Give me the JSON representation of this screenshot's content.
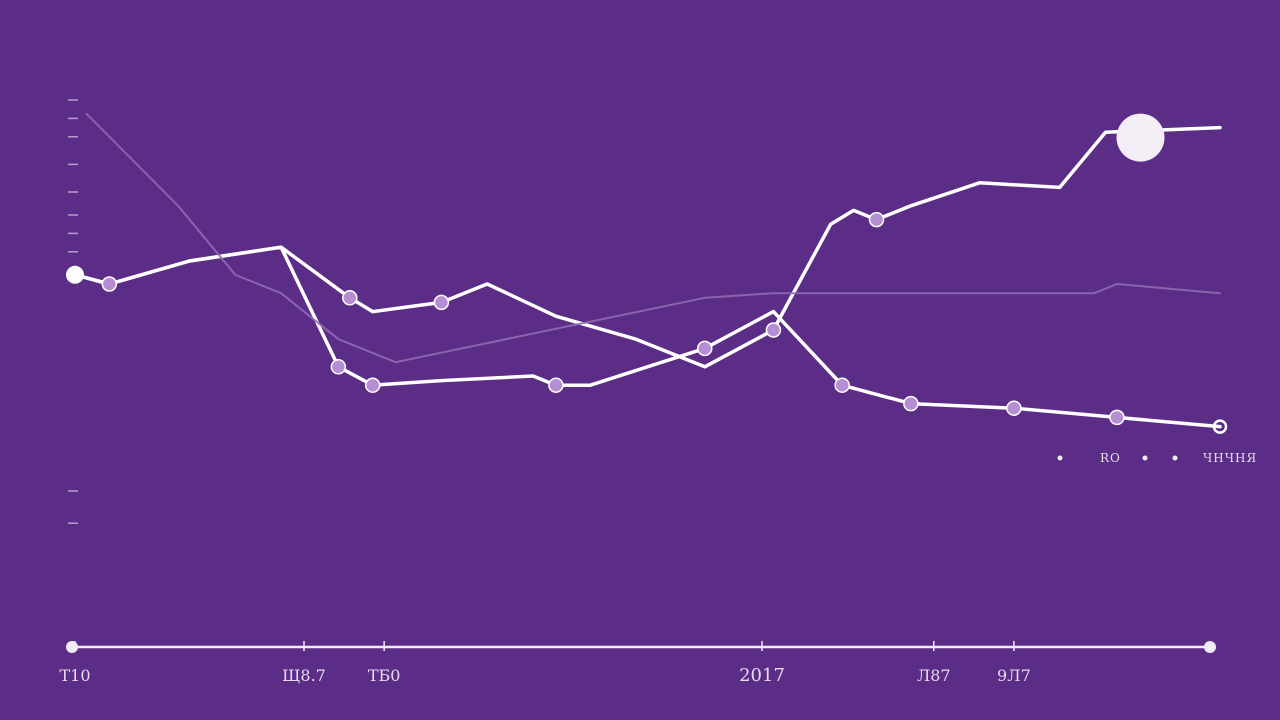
{
  "colors": {
    "background": "#5c2d86",
    "main_line": "#ffffff",
    "secondary_line": "#8f6bb3",
    "marker_fill": "#b58ed3",
    "axis": "#f2ecf7"
  },
  "chart_data": {
    "type": "line",
    "title": "",
    "xlabel": "",
    "ylabel": "",
    "x_ticks": [
      {
        "x": 0,
        "label": "Т10"
      },
      {
        "x": 20,
        "label": "Щ8.7"
      },
      {
        "x": 27,
        "label": "ТБ0"
      },
      {
        "x": 60,
        "label": "2017"
      },
      {
        "x": 75,
        "label": "Л87"
      },
      {
        "x": 82,
        "label": "9Л7"
      }
    ],
    "legend": {
      "placement": "right",
      "entries": [
        "RO",
        "ЧНЧНЯ"
      ]
    },
    "xlim": [
      0,
      100
    ],
    "ylim": [
      0,
      100
    ],
    "series": [
      {
        "x": [
          0,
          3,
          10,
          18,
          23,
          26,
          32,
          40,
          42,
          45,
          55,
          61,
          67,
          73,
          82,
          91,
          100
        ],
        "y": [
          62,
          60,
          65,
          68,
          42,
          38,
          39,
          40,
          38,
          38,
          46,
          54,
          38,
          34,
          33,
          31,
          29
        ]
      },
      {
        "x": [
          0,
          3,
          10,
          18,
          24,
          26,
          29,
          32,
          36,
          42,
          49,
          55,
          61,
          66,
          68,
          70,
          73,
          79,
          86,
          89,
          90,
          100
        ],
        "y": [
          62,
          60,
          65,
          68,
          57,
          54,
          55,
          56,
          60,
          53,
          48,
          42,
          50,
          73,
          76,
          74,
          77,
          82,
          81,
          90,
          93,
          94
        ]
      },
      {
        "x": [
          1,
          9,
          14,
          18,
          23,
          28,
          55,
          61,
          72,
          89,
          91,
          100
        ],
        "y": [
          97,
          77,
          62,
          58,
          48,
          43,
          57,
          58,
          58,
          58,
          60,
          58
        ]
      }
    ]
  }
}
